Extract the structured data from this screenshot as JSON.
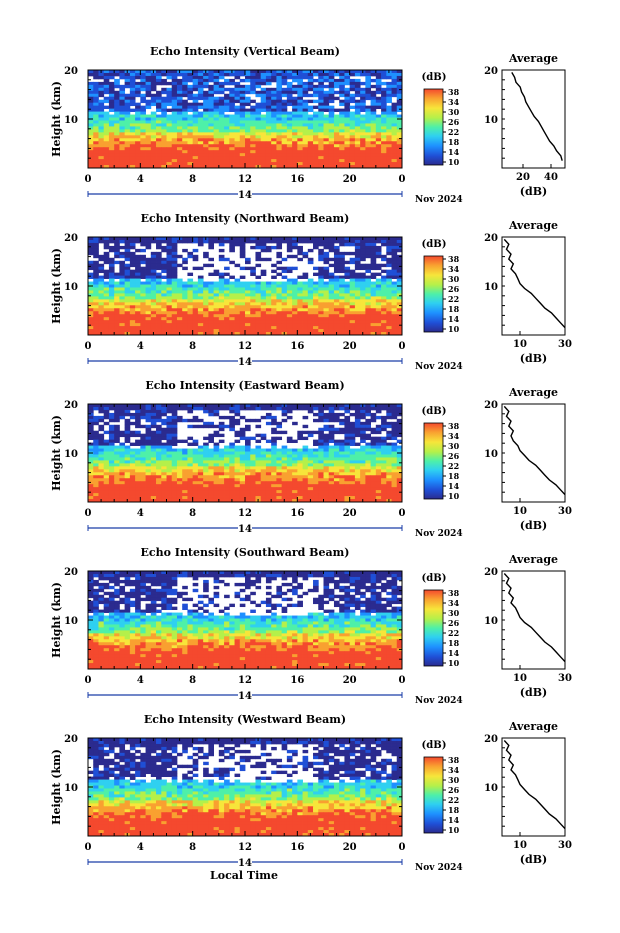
{
  "chart_data": [
    {
      "type": "heatmap",
      "title": "Echo Intensity (Vertical Beam)",
      "ylabel": "Height (km)",
      "yticks": [
        "20",
        "10"
      ],
      "xticks": [
        "0",
        "4",
        "8",
        "12",
        "16",
        "20",
        "0"
      ],
      "date_day": "14",
      "date_month": "Nov 2024",
      "colorbar_label": "(dB)",
      "colorbar_ticks": [
        "38",
        "34",
        "30",
        "26",
        "22",
        "18",
        "14",
        "10"
      ],
      "avg_title": "Average",
      "avg_xlabel": "(dB)",
      "avg_yticks": [
        "20",
        "10"
      ],
      "avg_xticks": [
        "20",
        "40"
      ],
      "avg_xlim": [
        5,
        50
      ],
      "avg_profile": [
        [
          48,
          1.5
        ],
        [
          47,
          2.5
        ],
        [
          44,
          3.5
        ],
        [
          42,
          4.5
        ],
        [
          39,
          5.5
        ],
        [
          37,
          6.5
        ],
        [
          35,
          7.5
        ],
        [
          33,
          8.5
        ],
        [
          31,
          9.5
        ],
        [
          28,
          10.5
        ],
        [
          26,
          11.5
        ],
        [
          24,
          12.5
        ],
        [
          22,
          13.5
        ],
        [
          21,
          14.5
        ],
        [
          19,
          15.5
        ],
        [
          18,
          16.5
        ],
        [
          15,
          17.5
        ],
        [
          14,
          18.5
        ],
        [
          12,
          19.5
        ]
      ]
    },
    {
      "type": "heatmap",
      "title": "Echo Intensity (Northward Beam)",
      "ylabel": "Height (km)",
      "yticks": [
        "20",
        "10"
      ],
      "xticks": [
        "0",
        "4",
        "8",
        "12",
        "16",
        "20",
        "0"
      ],
      "date_day": "14",
      "date_month": "Nov 2024",
      "colorbar_label": "(dB)",
      "colorbar_ticks": [
        "38",
        "34",
        "30",
        "26",
        "22",
        "18",
        "14",
        "10"
      ],
      "avg_title": "Average",
      "avg_xlabel": "(dB)",
      "avg_yticks": [
        "20",
        "10"
      ],
      "avg_xticks": [
        "10",
        "30"
      ],
      "avg_xlim": [
        2,
        30
      ],
      "avg_profile": [
        [
          30,
          1.5
        ],
        [
          28,
          2.5
        ],
        [
          26,
          3.5
        ],
        [
          24,
          4.5
        ],
        [
          21,
          5.5
        ],
        [
          19,
          6.5
        ],
        [
          17,
          7.5
        ],
        [
          15,
          8.5
        ],
        [
          12,
          9.5
        ],
        [
          10,
          10.5
        ],
        [
          9,
          11.5
        ],
        [
          8,
          12.5
        ],
        [
          6,
          13.5
        ],
        [
          7,
          14.5
        ],
        [
          5,
          15.5
        ],
        [
          6,
          16.5
        ],
        [
          4,
          17.5
        ],
        [
          5,
          18.5
        ],
        [
          3,
          19.5
        ]
      ]
    },
    {
      "type": "heatmap",
      "title": "Echo Intensity (Eastward Beam)",
      "ylabel": "Height (km)",
      "yticks": [
        "20",
        "10"
      ],
      "xticks": [
        "0",
        "4",
        "8",
        "12",
        "16",
        "20",
        "0"
      ],
      "date_day": "14",
      "date_month": "Nov 2024",
      "colorbar_label": "(dB)",
      "colorbar_ticks": [
        "38",
        "34",
        "30",
        "26",
        "22",
        "18",
        "14",
        "10"
      ],
      "avg_title": "Average",
      "avg_xlabel": "(dB)",
      "avg_yticks": [
        "20",
        "10"
      ],
      "avg_xticks": [
        "10",
        "30"
      ],
      "avg_xlim": [
        2,
        30
      ],
      "avg_profile": [
        [
          30,
          1.5
        ],
        [
          28,
          2.5
        ],
        [
          26,
          3.5
        ],
        [
          23,
          4.5
        ],
        [
          21,
          5.5
        ],
        [
          19,
          6.5
        ],
        [
          17,
          7.5
        ],
        [
          14,
          8.5
        ],
        [
          12,
          9.5
        ],
        [
          10,
          10.5
        ],
        [
          9,
          11.5
        ],
        [
          7,
          12.5
        ],
        [
          6,
          13.5
        ],
        [
          7,
          14.5
        ],
        [
          5,
          15.5
        ],
        [
          6,
          16.5
        ],
        [
          4,
          17.5
        ],
        [
          5,
          18.5
        ],
        [
          3,
          19.5
        ]
      ]
    },
    {
      "type": "heatmap",
      "title": "Echo Intensity (Southward Beam)",
      "ylabel": "Height (km)",
      "yticks": [
        "20",
        "10"
      ],
      "xticks": [
        "0",
        "4",
        "8",
        "12",
        "16",
        "20",
        "0"
      ],
      "date_day": "14",
      "date_month": "Nov 2024",
      "colorbar_label": "(dB)",
      "colorbar_ticks": [
        "38",
        "34",
        "30",
        "26",
        "22",
        "18",
        "14",
        "10"
      ],
      "avg_title": "Average",
      "avg_xlabel": "(dB)",
      "avg_yticks": [
        "20",
        "10"
      ],
      "avg_xticks": [
        "10",
        "30"
      ],
      "avg_xlim": [
        2,
        30
      ],
      "avg_profile": [
        [
          30,
          1.5
        ],
        [
          28,
          2.5
        ],
        [
          26,
          3.5
        ],
        [
          24,
          4.5
        ],
        [
          21,
          5.5
        ],
        [
          19,
          6.5
        ],
        [
          17,
          7.5
        ],
        [
          15,
          8.5
        ],
        [
          12,
          9.5
        ],
        [
          10,
          10.5
        ],
        [
          9,
          11.5
        ],
        [
          8,
          12.5
        ],
        [
          6,
          13.5
        ],
        [
          7,
          14.5
        ],
        [
          5,
          15.5
        ],
        [
          6,
          16.5
        ],
        [
          4,
          17.5
        ],
        [
          5,
          18.5
        ],
        [
          3,
          19.5
        ]
      ]
    },
    {
      "type": "heatmap",
      "title": "Echo Intensity (Westward Beam)",
      "ylabel": "Height (km)",
      "yticks": [
        "20",
        "10"
      ],
      "xticks": [
        "0",
        "4",
        "8",
        "12",
        "16",
        "20",
        "0"
      ],
      "date_day": "14",
      "date_month": "Nov 2024",
      "colorbar_label": "(dB)",
      "colorbar_ticks": [
        "38",
        "34",
        "30",
        "26",
        "22",
        "18",
        "14",
        "10"
      ],
      "avg_title": "Average",
      "avg_xlabel": "(dB)",
      "avg_yticks": [
        "20",
        "10"
      ],
      "avg_xticks": [
        "10",
        "30"
      ],
      "avg_xlim": [
        2,
        30
      ],
      "avg_profile": [
        [
          30,
          1.5
        ],
        [
          28,
          2.5
        ],
        [
          26,
          3.5
        ],
        [
          23,
          4.5
        ],
        [
          21,
          5.5
        ],
        [
          19,
          6.5
        ],
        [
          17,
          7.5
        ],
        [
          14,
          8.5
        ],
        [
          12,
          9.5
        ],
        [
          10,
          10.5
        ],
        [
          9,
          11.5
        ],
        [
          8,
          12.5
        ],
        [
          6,
          13.5
        ],
        [
          7,
          14.5
        ],
        [
          5,
          15.5
        ],
        [
          6,
          16.5
        ],
        [
          4,
          17.5
        ],
        [
          5,
          18.5
        ],
        [
          3,
          19.5
        ]
      ]
    }
  ],
  "bottom_xlabel": "Local Time",
  "colormap": [
    "#2b2b8f",
    "#1f4fd6",
    "#1e90ff",
    "#2fd0f0",
    "#4ef0a8",
    "#b4f04a",
    "#f7e53a",
    "#f9a030",
    "#f4492e"
  ]
}
